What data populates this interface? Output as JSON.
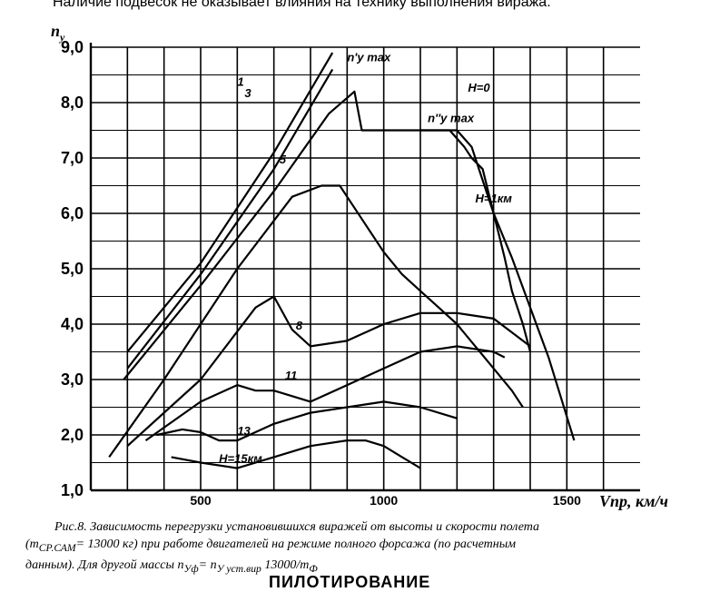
{
  "top_text": "Наличие подвесок не оказывает влияния на технику выполнения виража.",
  "caption": {
    "fig": "Рис.8.",
    "line1": "Зависимость перегрузки установившихся виражей от высоты и скорости полета",
    "line2a": "(m",
    "line2sub": "СР.САМ",
    "line2b": "= 13000  кг) при работе двигателей на режиме полного форсажа (по расчетным",
    "line3a": "данным). Для другой массы n",
    "line3sub1": "Уф",
    "line3b": "= n",
    "line3sub2": "У уст.вир",
    "line3c": "13000/m",
    "line3sub3": "Ф"
  },
  "cut_text": "ПИЛОТИРОВАНИЕ",
  "chart_data": {
    "type": "line",
    "ylabel": "n",
    "ylabel_sub": "y",
    "xlabel": "Vпр, км/ч",
    "xlim": [
      200,
      1700
    ],
    "ylim": [
      1.0,
      9.0
    ],
    "x_ticks": [
      500,
      1000,
      1500
    ],
    "x_tick_labels": [
      "500",
      "1000",
      "1500"
    ],
    "y_ticks": [
      1,
      2,
      3,
      4,
      5,
      6,
      7,
      8,
      9
    ],
    "y_tick_labels": [
      "1,0",
      "2,0",
      "3,0",
      "4,0",
      "5,0",
      "6,0",
      "7,0",
      "8,0",
      "9,0"
    ],
    "grid": true,
    "annotations": [
      {
        "text": "n'y max",
        "x": 900,
        "y": 8.75
      },
      {
        "text": "H=0",
        "x": 1230,
        "y": 8.2
      },
      {
        "text": "n''y max",
        "x": 1120,
        "y": 7.65
      },
      {
        "text": "H=1км",
        "x": 1250,
        "y": 6.2
      },
      {
        "text": "H=15км",
        "x": 550,
        "y": 1.5
      }
    ],
    "series": [
      {
        "name": "H=0",
        "label_at": [
          560,
          7.8
        ],
        "x": [
          300,
          500,
          700,
          860
        ],
        "y": [
          3.5,
          5.1,
          7.1,
          8.9
        ]
      },
      {
        "name": "1",
        "label_at": [
          600,
          8.3
        ],
        "x": [
          300,
          500,
          700,
          860
        ],
        "y": [
          3.2,
          4.9,
          6.8,
          8.6
        ]
      },
      {
        "name": "3",
        "label_at": [
          620,
          8.1
        ],
        "x": [
          290,
          500,
          700,
          850,
          920,
          940,
          1080,
          1150,
          1180,
          1220,
          1240,
          1270,
          1300,
          1330,
          1350,
          1380,
          1400
        ],
        "y": [
          3.0,
          4.7,
          6.4,
          7.8,
          8.2,
          7.5,
          7.5,
          7.5,
          7.5,
          7.2,
          7.0,
          6.8,
          6.0,
          5.2,
          4.6,
          4.0,
          3.5
        ]
      },
      {
        "name": "5",
        "label_at": [
          715,
          6.9
        ],
        "x": [
          250,
          400,
          600,
          750,
          830,
          880,
          900,
          950,
          1000,
          1050,
          1100,
          1150,
          1200,
          1250,
          1300,
          1350,
          1380
        ],
        "y": [
          1.6,
          3.0,
          5.0,
          6.3,
          6.5,
          6.5,
          6.3,
          5.8,
          5.3,
          4.9,
          4.6,
          4.3,
          4.0,
          3.6,
          3.2,
          2.8,
          2.5
        ]
      },
      {
        "name": "8",
        "label_at": [
          760,
          3.9
        ],
        "x": [
          300,
          500,
          650,
          700,
          750,
          800,
          900,
          1000,
          1100,
          1200,
          1300,
          1400
        ],
        "y": [
          1.8,
          3.0,
          4.3,
          4.5,
          3.9,
          3.6,
          3.7,
          4.0,
          4.2,
          4.2,
          4.1,
          3.6
        ]
      },
      {
        "name": "11",
        "label_at": [
          730,
          3.0
        ],
        "x": [
          350,
          500,
          600,
          650,
          700,
          800,
          900,
          1000,
          1100,
          1200,
          1300,
          1330
        ],
        "y": [
          1.9,
          2.6,
          2.9,
          2.8,
          2.8,
          2.6,
          2.9,
          3.2,
          3.5,
          3.6,
          3.5,
          3.4
        ]
      },
      {
        "name": "13",
        "label_at": [
          600,
          2.0
        ],
        "x": [
          380,
          450,
          500,
          550,
          600,
          700,
          800,
          900,
          1000,
          1100,
          1200
        ],
        "y": [
          2.0,
          2.1,
          2.05,
          1.9,
          1.9,
          2.2,
          2.4,
          2.5,
          2.6,
          2.5,
          2.3
        ]
      },
      {
        "name": "H=15км",
        "label_at": [
          550,
          1.5
        ],
        "x": [
          420,
          500,
          600,
          700,
          800,
          900,
          950,
          1000,
          1050,
          1100
        ],
        "y": [
          1.6,
          1.5,
          1.4,
          1.6,
          1.8,
          1.9,
          1.9,
          1.8,
          1.6,
          1.4
        ]
      },
      {
        "name": "H=1км",
        "label_at": [
          1250,
          6.2
        ],
        "x": [
          1100,
          1150,
          1200,
          1240,
          1260,
          1300,
          1350,
          1400,
          1450,
          1520
        ],
        "y": [
          7.5,
          7.5,
          7.5,
          7.2,
          6.8,
          6.0,
          5.2,
          4.3,
          3.4,
          1.9
        ]
      }
    ]
  }
}
